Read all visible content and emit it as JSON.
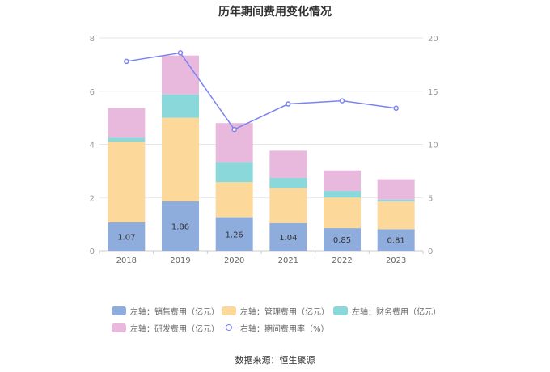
{
  "title": "历年期间费用变化情况",
  "source": "数据来源：恒生聚源",
  "legend": [
    {
      "label": "左轴：销售费用（亿元）",
      "color": "#8eaddd"
    },
    {
      "label": "左轴：管理费用（亿元）",
      "color": "#fdd89b"
    },
    {
      "label": "左轴：财务费用（亿元）",
      "color": "#8ad8d9"
    },
    {
      "label": "左轴：研发费用（亿元）",
      "color": "#e8b9dc"
    },
    {
      "label": "右轴：期间费用率（%）",
      "color": "#7b83f0"
    }
  ],
  "chart_data": {
    "type": "bar",
    "stacked": true,
    "title": "历年期间费用变化情况",
    "categories": [
      "2018",
      "2019",
      "2020",
      "2021",
      "2022",
      "2023"
    ],
    "series": [
      {
        "name": "左轴：销售费用（亿元）",
        "axis": "left",
        "color": "#8eaddd",
        "values": [
          1.07,
          1.86,
          1.26,
          1.04,
          0.85,
          0.81
        ],
        "labels": [
          "1.07",
          "1.86",
          "1.26",
          "1.04",
          "0.85",
          "0.81"
        ]
      },
      {
        "name": "左轴：管理费用（亿元）",
        "axis": "left",
        "color": "#fdd89b",
        "values": [
          3.03,
          3.14,
          1.32,
          1.32,
          1.15,
          1.04
        ]
      },
      {
        "name": "左轴：财务费用（亿元）",
        "axis": "left",
        "color": "#8ad8d9",
        "values": [
          0.15,
          0.88,
          0.75,
          0.38,
          0.25,
          0.07
        ]
      },
      {
        "name": "左轴：研发费用（亿元）",
        "axis": "left",
        "color": "#e8b9dc",
        "values": [
          1.12,
          1.46,
          1.47,
          1.02,
          0.77,
          0.77
        ]
      },
      {
        "name": "右轴：期间费用率（%）",
        "axis": "right",
        "type": "line",
        "color": "#7b83f0",
        "values": [
          17.8,
          18.6,
          11.4,
          13.8,
          14.1,
          13.4
        ]
      }
    ],
    "left_axis": {
      "min": 0,
      "max": 8,
      "ticks": [
        "0",
        "2",
        "4",
        "6",
        "8"
      ]
    },
    "right_axis": {
      "min": 0,
      "max": 20,
      "ticks": [
        "0",
        "5",
        "10",
        "15",
        "20"
      ]
    },
    "grid": true,
    "legend_position": "bottom"
  }
}
